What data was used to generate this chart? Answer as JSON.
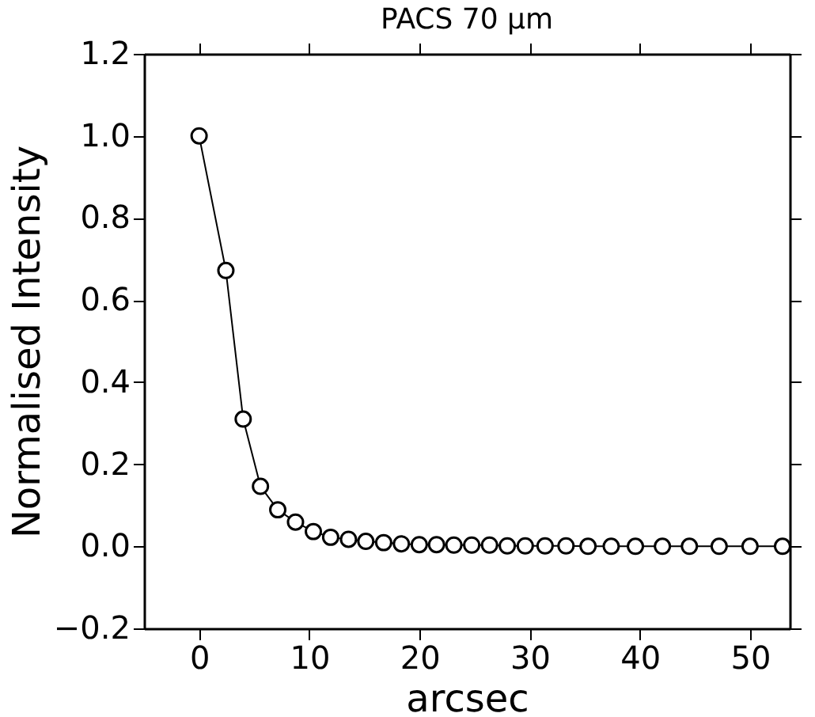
{
  "chart_data": {
    "type": "line",
    "title": "PACS 70 μm",
    "xlabel": "arcsec",
    "ylabel": "Normalised Intensity",
    "x": [
      0,
      2.43,
      4.0,
      5.57,
      7.14,
      8.75,
      10.37,
      11.94,
      13.56,
      15.13,
      16.75,
      18.36,
      19.98,
      21.55,
      23.12,
      24.74,
      26.36,
      27.97,
      29.6,
      31.4,
      33.3,
      35.3,
      37.4,
      39.6,
      42.05,
      44.5,
      47.2,
      50.0,
      52.95
    ],
    "series": [
      {
        "color": "#000000",
        "values": [
          1.0,
          0.672,
          0.31,
          0.146,
          0.089,
          0.059,
          0.036,
          0.022,
          0.017,
          0.012,
          0.009,
          0.006,
          0.004,
          0.004,
          0.003,
          0.003,
          0.003,
          0.001,
          0.001,
          0.001,
          0.001,
          0.0,
          0.0,
          0.0,
          0.0,
          0.0,
          0.0,
          0.0,
          0.0
        ]
      }
    ],
    "xlim": [
      -5,
      53.6
    ],
    "ylim": [
      -0.2,
      1.2
    ],
    "xticks": [
      0,
      10,
      20,
      30,
      40,
      50
    ],
    "yticks": [
      -0.2,
      {
        "value": 0,
        "label": "0.0"
      },
      0.2,
      0.4,
      0.6,
      0.8,
      {
        "value": 1,
        "label": "1.0"
      },
      1.2
    ],
    "marker": "circle",
    "line_style": "solid",
    "grid": false
  }
}
